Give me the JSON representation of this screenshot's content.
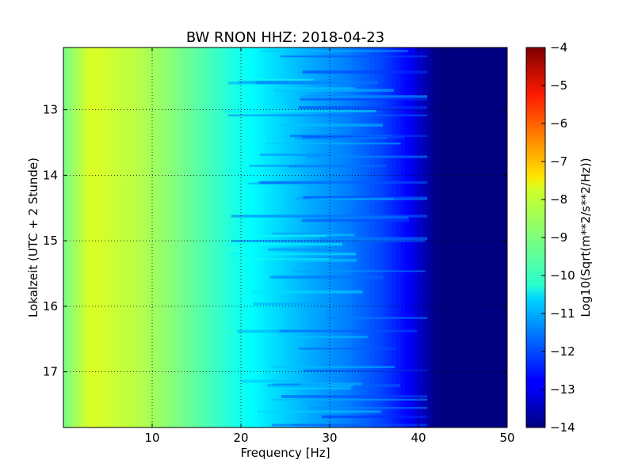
{
  "chart_data": {
    "type": "heatmap",
    "title": "BW RNON HHZ: 2018-04-23",
    "xlabel": "Frequency [Hz]",
    "ylabel": "Lokalzeit (UTC + 2 Stunde)",
    "xlim": [
      0,
      50
    ],
    "ylim": [
      12.05,
      17.85
    ],
    "y_inverted": true,
    "grid": true,
    "x_ticks": [
      10,
      20,
      30,
      40,
      50
    ],
    "x_tick_labels": [
      "10",
      "20",
      "30",
      "40",
      "50"
    ],
    "y_ticks": [
      13,
      14,
      15,
      16,
      17
    ],
    "y_tick_labels": [
      "13",
      "14",
      "15",
      "16",
      "17"
    ],
    "colormap": "jet",
    "colorbar": {
      "label": "Log10(Sqrt(m**2/s**2/Hz))",
      "range": [
        -14,
        -4
      ],
      "ticks": [
        -4,
        -5,
        -6,
        -7,
        -8,
        -9,
        -10,
        -11,
        -12,
        -13,
        -14
      ],
      "tick_labels": [
        "−4",
        "−5",
        "−6",
        "−7",
        "−8",
        "−9",
        "−10",
        "−11",
        "−12",
        "−13",
        "−14"
      ]
    },
    "spectrum_profile": {
      "frequency_hz": [
        0,
        3,
        8,
        12,
        16,
        20,
        24,
        28,
        32,
        36,
        39,
        40.5,
        42,
        50
      ],
      "log10_amplitude": [
        -9.1,
        -8.1,
        -8.4,
        -8.9,
        -9.5,
        -10.1,
        -10.6,
        -11.1,
        -11.5,
        -12.1,
        -12.8,
        -13.4,
        -14,
        -14
      ]
    }
  }
}
